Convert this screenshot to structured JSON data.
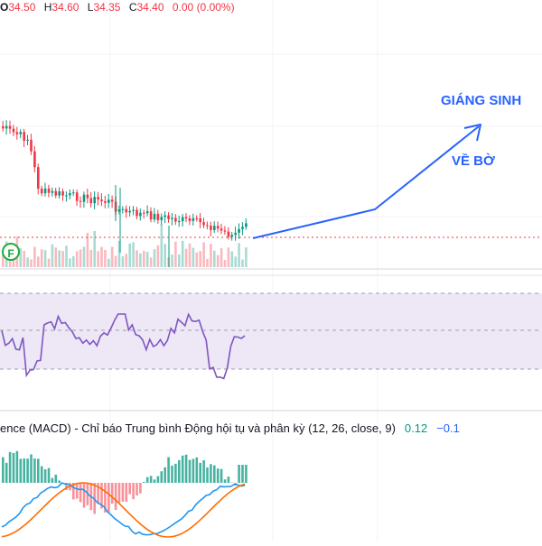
{
  "ohlc": {
    "open_key": "O",
    "open": "34.50",
    "high_key": "H",
    "high": "34.60",
    "low_key": "L",
    "low": "34.35",
    "close_key": "C",
    "close": "34.40",
    "change": "0.00 (0.00%)"
  },
  "annotations": {
    "target_label": "GIÁNG SINH",
    "mid_label": "VỀ BỜ"
  },
  "badge": {
    "letter": "F"
  },
  "macd": {
    "title": "ence (MACD) - Chỉ báo Trung bình Động hội tụ và phân kỳ (12, 26, close, 9)",
    "value_a": "0.12",
    "value_b": "−0.1"
  },
  "colors": {
    "up": "#089981",
    "down": "#f23645",
    "drawing": "#2962ff",
    "rsi_line": "#7e57c2",
    "rsi_band": "#ede7f6",
    "macd_line": "#2196f3",
    "signal_line": "#ff6d00"
  }
}
